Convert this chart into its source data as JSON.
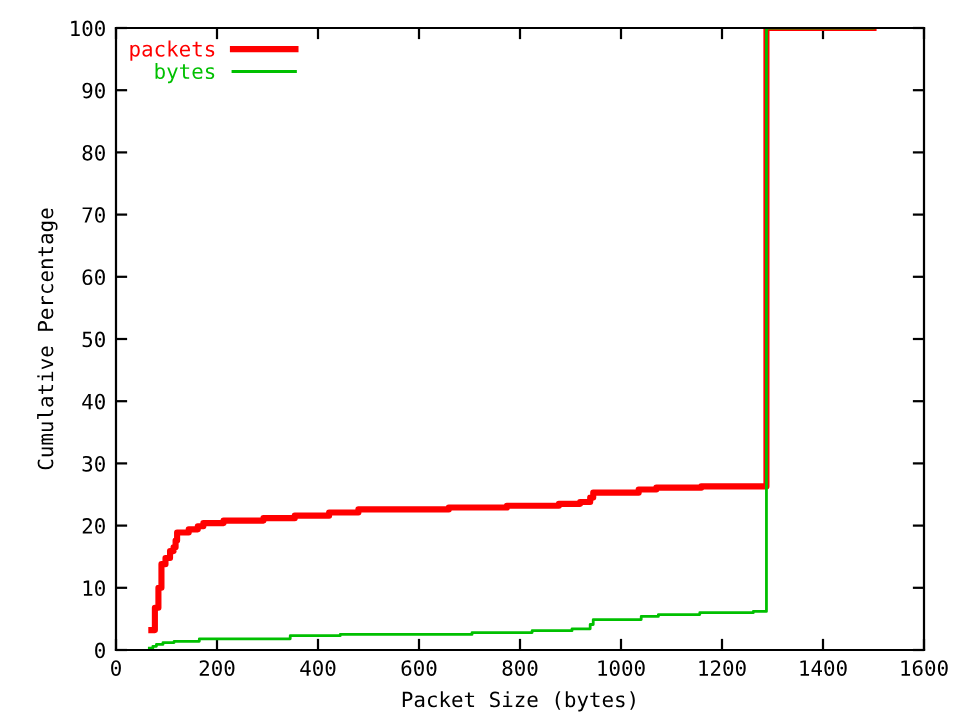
{
  "chart_data": {
    "type": "step",
    "xlabel": "Packet Size (bytes)",
    "ylabel": "Cumulative Percentage",
    "xlim": [
      0,
      1600
    ],
    "ylim": [
      0,
      100
    ],
    "xticks": [
      0,
      200,
      400,
      600,
      800,
      1000,
      1200,
      1400,
      1600
    ],
    "yticks": [
      0,
      10,
      20,
      30,
      40,
      50,
      60,
      70,
      80,
      90,
      100
    ],
    "legend": "top left",
    "grid": false,
    "series": [
      {
        "name": "packets",
        "color": "#ff0000",
        "x": [
          70,
          77,
          84,
          90,
          98,
          107,
          114,
          118,
          121,
          144,
          162,
          173,
          213,
          292,
          354,
          422,
          480,
          659,
          774,
          877,
          919,
          939,
          945,
          1035,
          1070,
          1159,
          1288,
          1500
        ],
        "values": [
          3.2,
          6.8,
          10,
          13.8,
          14.8,
          15.9,
          16.5,
          17.6,
          18.9,
          19.4,
          19.9,
          20.4,
          20.8,
          21.2,
          21.6,
          22.1,
          22.6,
          22.9,
          23.2,
          23.5,
          23.8,
          24.5,
          25.3,
          25.8,
          26.1,
          26.3,
          100,
          100
        ]
      },
      {
        "name": "bytes",
        "color": "#00c000",
        "x": [
          66,
          73,
          80,
          93,
          115,
          165,
          345,
          444,
          705,
          824,
          903,
          939,
          945,
          1040,
          1074,
          1156,
          1262,
          1288,
          1500
        ],
        "values": [
          0.3,
          0.6,
          0.9,
          1.2,
          1.4,
          1.8,
          2.3,
          2.5,
          2.8,
          3.1,
          3.4,
          4.1,
          4.9,
          5.4,
          5.7,
          6.0,
          6.2,
          100,
          100
        ]
      }
    ]
  }
}
